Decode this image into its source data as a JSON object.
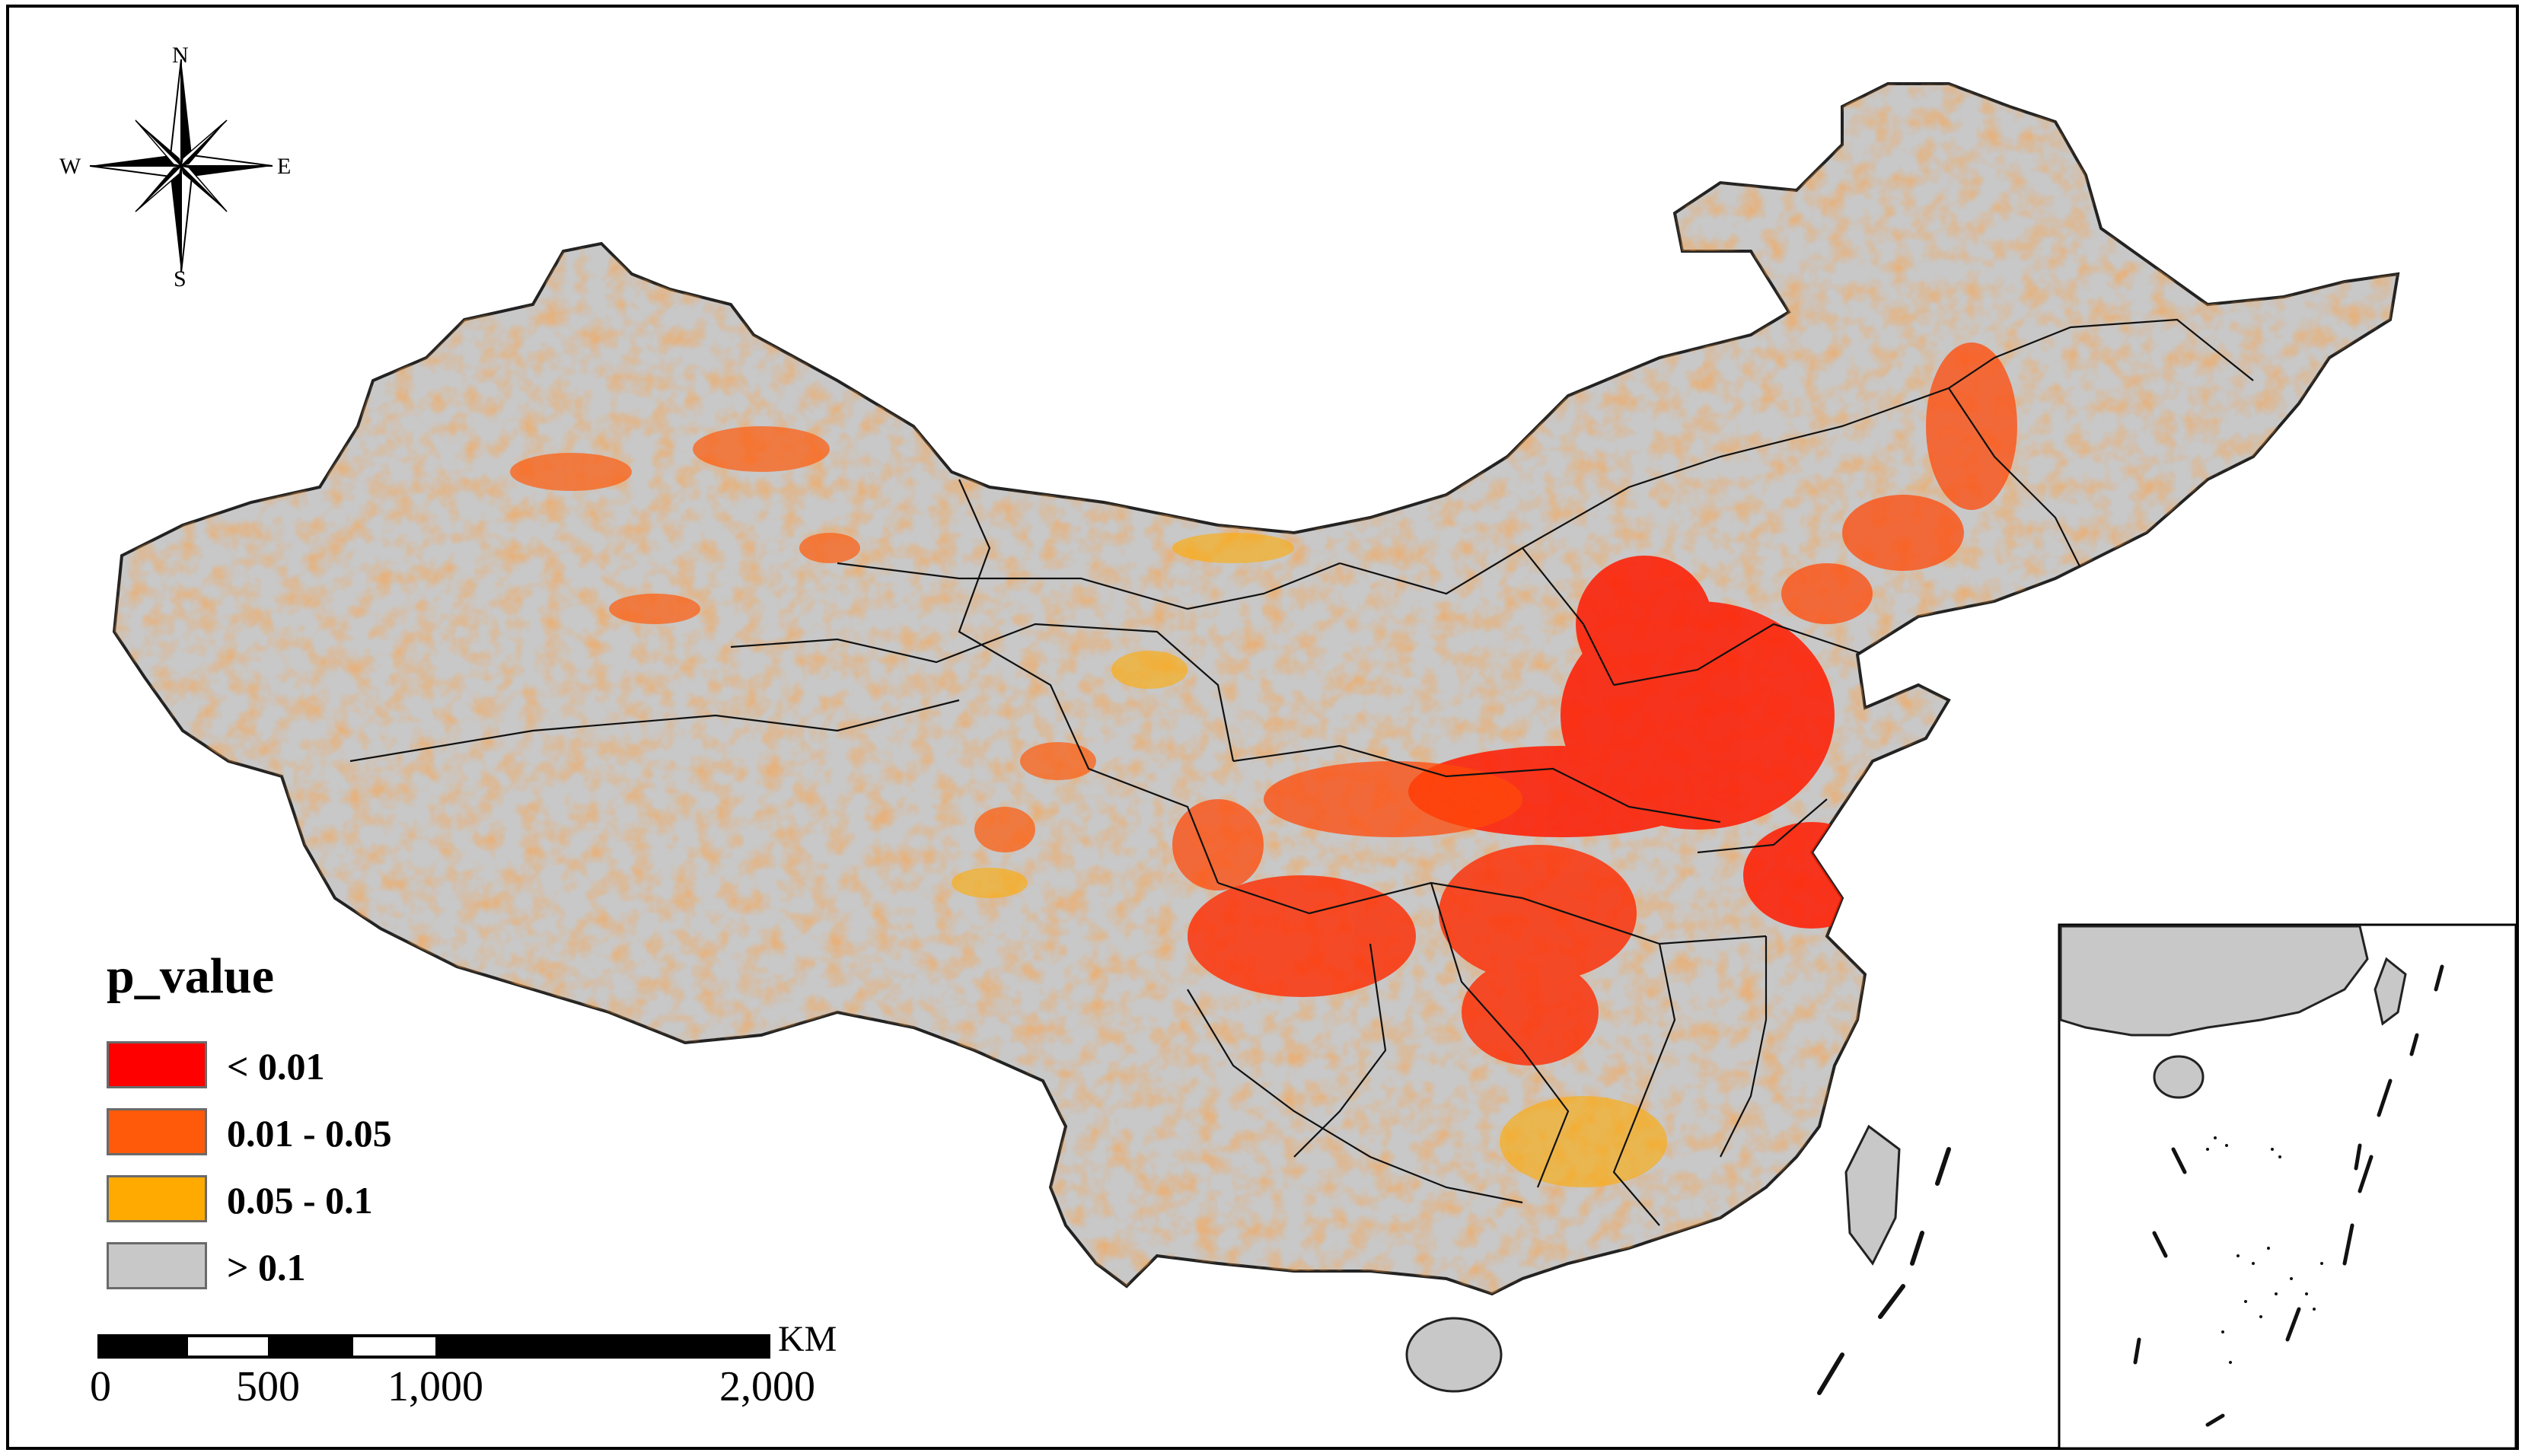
{
  "map": {
    "legend": {
      "title": "p_value",
      "classes": [
        {
          "label": "< 0.01",
          "color": "#ff0000"
        },
        {
          "label": "0.01 - 0.05",
          "color": "#ff5a0a"
        },
        {
          "label": "0.05 - 0.1",
          "color": "#ffaa00"
        },
        {
          "label": "> 0.1",
          "color": "#c8c8c8"
        }
      ]
    },
    "scale_bar": {
      "unit": "KM",
      "labels": [
        "0",
        "500",
        "1,000",
        "2,000"
      ]
    },
    "compass": {
      "north": "N",
      "south": "S",
      "east": "E",
      "west": "W"
    },
    "colors": {
      "land": "#c8c8c8",
      "boundary": "#111111",
      "frame": "#000000"
    }
  }
}
